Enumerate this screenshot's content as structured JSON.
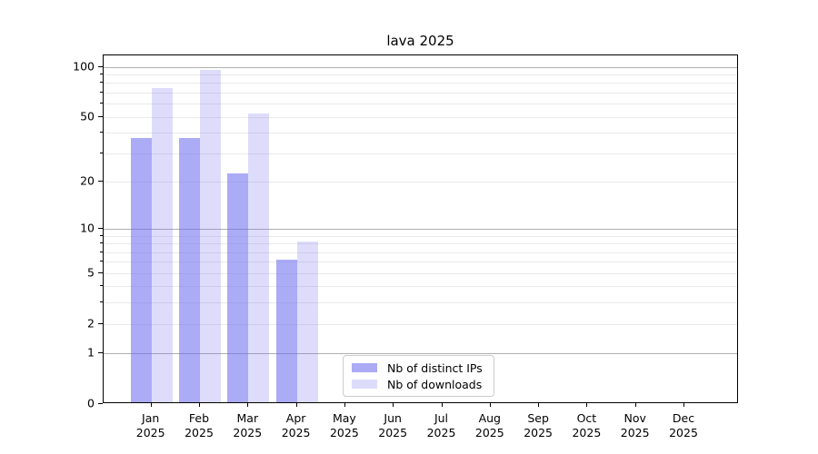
{
  "figure": {
    "background": "#ffffff"
  },
  "chart_data": {
    "type": "bar",
    "title": "lava 2025",
    "categories": [
      "Jan 2025",
      "Feb 2025",
      "Mar 2025",
      "Apr 2025",
      "May 2025",
      "Jun 2025",
      "Jul 2025",
      "Aug 2025",
      "Sep 2025",
      "Oct 2025",
      "Nov 2025",
      "Dec 2025"
    ],
    "series": [
      {
        "name": "Nb of distinct IPs",
        "color": "rgba(102,102,238,0.55)",
        "values": [
          36,
          36,
          22,
          6,
          0,
          0,
          0,
          0,
          0,
          0,
          0,
          0
        ]
      },
      {
        "name": "Nb of downloads",
        "color": "rgba(102,102,238,0.22)",
        "values": [
          73,
          93,
          51,
          8,
          0,
          0,
          0,
          0,
          0,
          0,
          0,
          0
        ]
      }
    ],
    "yscale": "log1p",
    "ylim": [
      0,
      117
    ],
    "yticks": [
      0,
      1,
      2,
      5,
      10,
      20,
      50,
      100
    ],
    "ytick_labels": [
      "0",
      "1",
      "2",
      "5",
      "10",
      "20",
      "50",
      "100"
    ],
    "major_gridlines": [
      1,
      10,
      100
    ],
    "minor_gridlines": [
      2,
      3,
      4,
      5,
      6,
      7,
      8,
      9,
      20,
      30,
      40,
      50,
      60,
      70,
      80,
      90
    ],
    "grid": true,
    "legend": {
      "location": "lower center inside plot"
    },
    "colors": {
      "grid_major": "#b0b0b0",
      "grid_minor": "#eaeaea",
      "axis": "#000000",
      "text": "#000000"
    }
  }
}
